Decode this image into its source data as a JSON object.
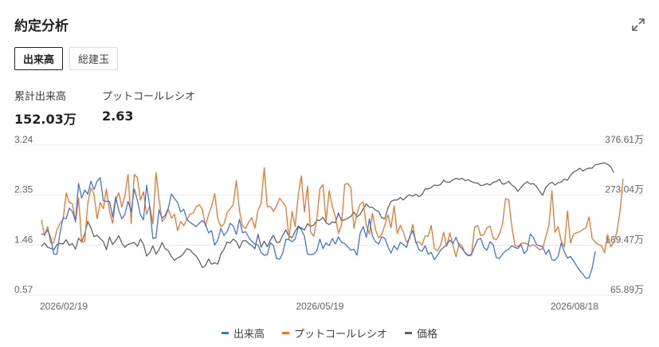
{
  "title": "約定分析",
  "tabs": [
    {
      "label": "出来高",
      "active": true
    },
    {
      "label": "総建玉",
      "active": false
    }
  ],
  "stats": [
    {
      "label": "累計出来高",
      "value": "152.03万"
    },
    {
      "label": "プットコールレシオ",
      "value": "2.63"
    }
  ],
  "colors": {
    "volume": "#4472d9",
    "pcr": "#e8772e",
    "price": "#5f6369",
    "grid": "#e8eaed"
  },
  "legend": [
    "出来高",
    "プットコールレシオ",
    "価格"
  ],
  "chart_data": {
    "type": "line",
    "x_ticks": [
      "2026/02/19",
      "2026/05/19",
      "2026/08/18"
    ],
    "x_tick_index": [
      0,
      90,
      180
    ],
    "left_axis": {
      "ticks": [
        "3.24",
        "2.35",
        "1.46",
        "0.57"
      ],
      "ylim": [
        0.57,
        3.24
      ]
    },
    "right_axis": {
      "ticks": [
        "376.61万",
        "273.04万",
        "169.47万",
        "65.89万"
      ],
      "ylim": [
        65.89,
        376.61
      ]
    },
    "grid": true,
    "legend_position": "bottom",
    "series": [
      {
        "name": "出来高",
        "axis": "left",
        "values": [
          1.66,
          1.65,
          1.73,
          1.6,
          1.3,
          1.3,
          1.68,
          1.95,
          1.93,
          2.12,
          2.06,
          1.89,
          2.56,
          2.3,
          2.44,
          2.37,
          2.6,
          2.45,
          2.6,
          2.66,
          2.25,
          2.24,
          2.24,
          1.96,
          2.32,
          2.08,
          1.93,
          2.01,
          2.24,
          2.06,
          2.46,
          2.26,
          2.0,
          1.91,
          2.53,
          2.15,
          1.58,
          1.59,
          2.09,
          1.94,
          1.99,
          2.12,
          2.37,
          2.29,
          2.22,
          2.05,
          2.1,
          1.92,
          1.87,
          1.83,
          1.79,
          1.85,
          1.9,
          1.84,
          1.68,
          1.72,
          1.46,
          1.55,
          1.76,
          1.63,
          1.7,
          1.85,
          1.8,
          1.65,
          1.92,
          1.68,
          1.7,
          1.6,
          1.53,
          1.48,
          1.46,
          1.33,
          1.28,
          1.29,
          1.5,
          1.45,
          1.22,
          1.21,
          1.32,
          1.56,
          1.56,
          1.52,
          1.57,
          1.78,
          1.74,
          1.62,
          1.3,
          1.29,
          1.3,
          1.36,
          1.57,
          1.4,
          1.5,
          1.45,
          1.58,
          1.48,
          1.61,
          1.51,
          1.49,
          1.43,
          1.37,
          1.39,
          1.28,
          1.67,
          1.79,
          1.6,
          1.93,
          1.62,
          1.52,
          1.48,
          1.61,
          1.58,
          1.43,
          1.32,
          1.45,
          1.38,
          1.51,
          1.47,
          1.42,
          1.61,
          1.72,
          1.53,
          1.38,
          1.35,
          1.45,
          1.3,
          1.33,
          1.2,
          1.28,
          1.37,
          1.42,
          1.47,
          1.55,
          1.49,
          1.6,
          1.45,
          1.4,
          1.32,
          1.28,
          1.3,
          1.43,
          1.56,
          1.58,
          1.42,
          1.37,
          1.52,
          1.47,
          1.24,
          1.22,
          1.3,
          1.36,
          1.39,
          1.45,
          1.42,
          1.4,
          1.47,
          1.31,
          1.37,
          1.66,
          1.6,
          1.47,
          1.45,
          1.43,
          1.3,
          1.38,
          1.2,
          1.19,
          1.26,
          1.5,
          1.34,
          1.23,
          1.26,
          1.18,
          1.09,
          1.01,
          0.94,
          0.87,
          0.88,
          1.05,
          1.35
        ]
      },
      {
        "name": "プットコールレシオ",
        "axis": "left",
        "values": [
          1.91,
          1.63,
          1.79,
          1.5,
          1.51,
          1.73,
          1.85,
          1.92,
          2.39,
          2.22,
          2.2,
          1.87,
          2.3,
          1.51,
          1.53,
          2.21,
          2.48,
          2.36,
          1.93,
          2.22,
          2.11,
          2.46,
          2.06,
          1.85,
          2.26,
          2.39,
          2.14,
          2.35,
          2.72,
          1.85,
          2.72,
          2.66,
          2.26,
          2.41,
          2.01,
          2.16,
          1.84,
          2.75,
          2.29,
          1.88,
          1.95,
          2.1,
          1.94,
          2.01,
          1.72,
          1.88,
          1.81,
          1.91,
          2.01,
          2.03,
          2.14,
          2.18,
          2.1,
          1.8,
          2.0,
          2.15,
          2.38,
          1.93,
          1.79,
          1.84,
          2.04,
          2.11,
          2.18,
          2.61,
          2.08,
          1.8,
          1.76,
          1.87,
          1.95,
          1.76,
          2.09,
          2.2,
          2.84,
          2.14,
          2.15,
          2.06,
          2.16,
          2.3,
          2.22,
          2.15,
          1.57,
          2.06,
          1.79,
          2.35,
          2.69,
          2.05,
          2.51,
          1.69,
          1.62,
          1.93,
          2.46,
          2.54,
          1.88,
          2.43,
          2.15,
          1.96,
          1.67,
          1.82,
          2.54,
          2.56,
          2.48,
          1.76,
          2.03,
          2.19,
          2.23,
          1.81,
          1.66,
          2.03,
          1.73,
          1.59,
          1.65,
          1.82,
          2.0,
          1.77,
          2.16,
          1.67,
          1.81,
          1.69,
          1.51,
          1.58,
          1.83,
          1.5,
          1.52,
          1.46,
          1.63,
          1.62,
          1.81,
          1.4,
          1.36,
          1.46,
          1.69,
          1.44,
          1.68,
          1.46,
          1.25,
          1.49,
          1.44,
          1.31,
          1.27,
          1.28,
          1.78,
          1.81,
          1.63,
          1.65,
          1.77,
          1.8,
          1.58,
          1.56,
          1.65,
          1.83,
          2.29,
          2.27,
          1.8,
          1.46,
          1.43,
          1.49,
          1.5,
          1.48,
          1.44,
          1.47,
          1.43,
          1.38,
          1.4,
          1.61,
          1.81,
          2.43,
          1.69,
          1.79,
          1.53,
          1.43,
          2.07,
          1.5,
          1.66,
          1.68,
          1.7,
          1.74,
          1.77,
          1.96,
          1.58,
          1.51,
          1.47,
          1.45,
          1.33,
          1.65,
          1.43,
          1.51,
          1.7,
          2.07,
          2.64
        ]
      },
      {
        "name": "価格",
        "axis": "right",
        "values": [
          167,
          174,
          165,
          163,
          160,
          170,
          173,
          172,
          181,
          169,
          173,
          161,
          184,
          176,
          193,
          219,
          205,
          187,
          190,
          183,
          177,
          160,
          186,
          171,
          179,
          189,
          174,
          165,
          171,
          173,
          175,
          167,
          182,
          171,
          147,
          154,
          168,
          151,
          160,
          175,
          162,
          158,
          146,
          138,
          143,
          146,
          153,
          162,
          160,
          152,
          147,
          137,
          123,
          127,
          141,
          130,
          133,
          130,
          151,
          161,
          176,
          174,
          182,
          177,
          163,
          178,
          179,
          173,
          169,
          162,
          192,
          165,
          178,
          166,
          180,
          190,
          175,
          176,
          190,
          201,
          188,
          185,
          198,
          209,
          205,
          201,
          214,
          208,
          211,
          221,
          221,
          227,
          216,
          212,
          218,
          216,
          236,
          220,
          222,
          225,
          229,
          238,
          228,
          233,
          245,
          255,
          248,
          248,
          242,
          239,
          226,
          224,
          247,
          260,
          263,
          263,
          268,
          263,
          270,
          274,
          271,
          275,
          270,
          274,
          286,
          286,
          289,
          294,
          293,
          295,
          304,
          300,
          300,
          305,
          308,
          306,
          308,
          303,
          305,
          301,
          299,
          298,
          293,
          294,
          297,
          294,
          300,
          301,
          306,
          296,
          297,
          302,
          294,
          290,
          281,
          289,
          296,
          301,
          296,
          297,
          291,
          281,
          273,
          289,
          296,
          300,
          294,
          299,
          300,
          306,
          304,
          314,
          321,
          324,
          329,
          323,
          327,
          329,
          329,
          336,
          337,
          339,
          340,
          337,
          332,
          320
        ]
      }
    ]
  }
}
